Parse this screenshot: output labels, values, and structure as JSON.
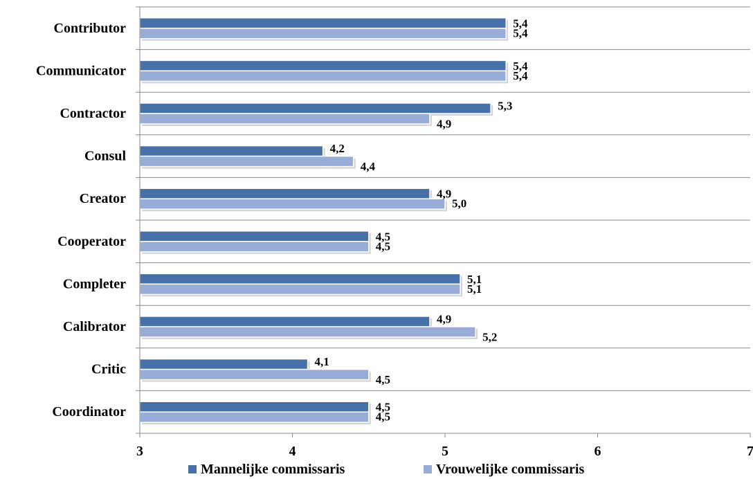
{
  "chart_data": {
    "type": "bar",
    "orientation": "horizontal",
    "categories": [
      "Contributor",
      "Communicator",
      "Contractor",
      "Consul",
      "Creator",
      "Cooperator",
      "Completer",
      "Calibrator",
      "Critic",
      "Coordinator"
    ],
    "series": [
      {
        "name": "Mannelijke commissaris",
        "color": "#4570a8",
        "values": [
          5.4,
          5.4,
          5.3,
          4.2,
          4.9,
          4.5,
          5.1,
          4.9,
          4.1,
          4.5
        ],
        "labels": [
          "5,4",
          "5,4",
          "5,3",
          "4,2",
          "4,9",
          "4,5",
          "5,1",
          "4,9",
          "4,1",
          "4,5"
        ]
      },
      {
        "name": "Vrouwelijke commissaris",
        "color": "#97acd6",
        "values": [
          5.4,
          5.4,
          4.9,
          4.4,
          5.0,
          4.5,
          5.1,
          5.2,
          4.5,
          4.5
        ],
        "labels": [
          "5,4",
          "5,4",
          "4,9",
          "4,4",
          "5,0",
          "4,5",
          "5,1",
          "5,2",
          "4,5",
          "4,5"
        ]
      }
    ],
    "xlim": [
      3,
      7
    ],
    "xticks": [
      3,
      4,
      5,
      6,
      7
    ],
    "xtick_labels": [
      "3",
      "4",
      "5",
      "6",
      "7"
    ],
    "grid": "horizontal",
    "legend": "bottom"
  }
}
